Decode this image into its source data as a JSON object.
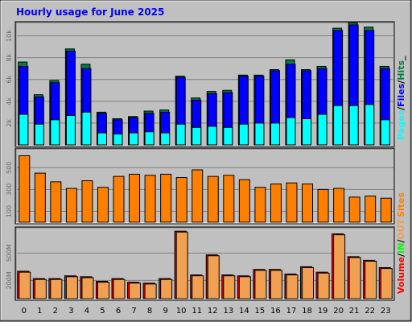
{
  "chart_data": {
    "type": "bar",
    "title": "Hourly usage for June 2025",
    "categories": [
      "0",
      "1",
      "2",
      "3",
      "4",
      "5",
      "6",
      "7",
      "8",
      "9",
      "10",
      "11",
      "12",
      "13",
      "14",
      "15",
      "16",
      "17",
      "18",
      "19",
      "20",
      "21",
      "22",
      "23"
    ],
    "colors": {
      "background": "#c0c0c0",
      "hits": "#008040",
      "files": "#0000ff",
      "pages": "#00ffff",
      "sites": "#ff8000",
      "volume_in": "#ff0000",
      "volume_out": "#f0a050",
      "title": "#0000ff",
      "frame": "#000000",
      "bevel_light": "#ffffff",
      "bevel_dark": "#808080",
      "grid": "#808080"
    },
    "panels": [
      {
        "name": "usage",
        "ylim": [
          0,
          11000
        ],
        "yticks": [
          2000,
          4000,
          6000,
          8000,
          10000
        ],
        "ytick_labels": [
          "2k",
          "4k",
          "6k",
          "8k",
          "10k"
        ],
        "series": [
          {
            "name": "Hits",
            "values": [
              7600,
              4600,
              5900,
              8800,
              7400,
              3000,
              2400,
              2600,
              3100,
              3200,
              6300,
              4300,
              4900,
              5000,
              6400,
              6400,
              6900,
              7800,
              6900,
              7200,
              10700,
              11200,
              10800,
              7200
            ]
          },
          {
            "name": "Files",
            "values": [
              7200,
              4400,
              5700,
              8600,
              7000,
              2900,
              2300,
              2500,
              2900,
              3000,
              6200,
              4100,
              4700,
              4800,
              6300,
              6300,
              6800,
              7400,
              6800,
              7000,
              10500,
              11000,
              10500,
              7000
            ]
          },
          {
            "name": "Pages",
            "values": [
              2800,
              1900,
              2300,
              2700,
              3000,
              1100,
              1000,
              1100,
              1200,
              1100,
              1900,
              1600,
              1700,
              1600,
              1900,
              2000,
              2000,
              2500,
              2400,
              2800,
              3600,
              3600,
              3700,
              2300
            ]
          }
        ],
        "legend": [
          "Pages",
          "/",
          "Files",
          "/",
          "Hits",
          "_"
        ]
      },
      {
        "name": "sites",
        "ylim": [
          0,
          650
        ],
        "yticks": [
          100,
          300,
          500
        ],
        "ytick_labels": [
          "100",
          "300",
          "500"
        ],
        "series": [
          {
            "name": "Sites",
            "values": [
              610,
              450,
              370,
              310,
              380,
              320,
              420,
              440,
              430,
              440,
              410,
              480,
              420,
              430,
              390,
              320,
              350,
              360,
              350,
              300,
              310,
              230,
              240,
              220
            ]
          }
        ],
        "legend": [
          "Sites"
        ]
      },
      {
        "name": "volume",
        "ylim": [
          0,
          750
        ],
        "yticks": [
          200,
          500
        ],
        "ytick_labels": [
          "200M",
          "500M"
        ],
        "series": [
          {
            "name": "IN",
            "values": [
              300,
              220,
              220,
              250,
              240,
              190,
              220,
              180,
              170,
              220,
              740,
              260,
              480,
              260,
              250,
              320,
              320,
              270,
              350,
              290,
              710,
              460,
              420,
              340
            ]
          },
          {
            "name": "OUT",
            "values": [
              290,
              210,
              210,
              240,
              230,
              180,
              210,
              170,
              160,
              210,
              730,
              250,
              470,
              250,
              240,
              310,
              310,
              260,
              340,
              280,
              700,
              450,
              410,
              330
            ]
          }
        ],
        "legend": [
          "Volume",
          "/",
          "IN",
          "/",
          "OUT"
        ]
      }
    ]
  }
}
